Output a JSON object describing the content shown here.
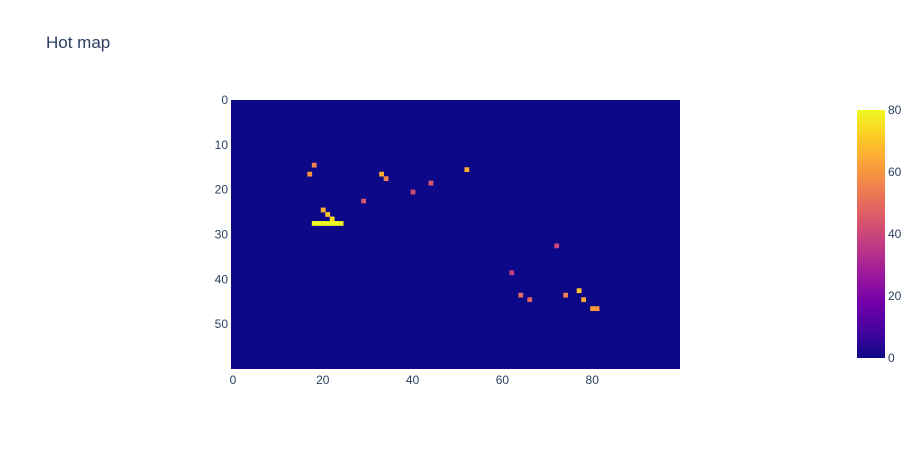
{
  "chart_data": {
    "type": "heatmap",
    "title": "Hot map",
    "xlabel": "",
    "ylabel": "",
    "xlim": [
      0,
      100
    ],
    "ylim": [
      60,
      0
    ],
    "x_ticks": [
      0,
      20,
      40,
      60,
      80
    ],
    "y_ticks": [
      0,
      10,
      20,
      30,
      40,
      50
    ],
    "colorbar": {
      "range": [
        0,
        80
      ],
      "ticks": [
        0,
        20,
        40,
        60,
        80
      ],
      "colorscale": [
        "#0d0887",
        "#46039f",
        "#7201a8",
        "#9c179e",
        "#bd3786",
        "#d8576b",
        "#ed7953",
        "#fb9f3a",
        "#fdca26",
        "#f0f921"
      ]
    },
    "background_value": 0,
    "hotspots": [
      {
        "x": 18,
        "y": 27,
        "value": 80
      },
      {
        "x": 19,
        "y": 27,
        "value": 80
      },
      {
        "x": 20,
        "y": 27,
        "value": 80
      },
      {
        "x": 21,
        "y": 27,
        "value": 80
      },
      {
        "x": 22,
        "y": 27,
        "value": 80
      },
      {
        "x": 23,
        "y": 27,
        "value": 80
      },
      {
        "x": 24,
        "y": 27,
        "value": 78
      },
      {
        "x": 22,
        "y": 26,
        "value": 76
      },
      {
        "x": 21,
        "y": 25,
        "value": 70
      },
      {
        "x": 20,
        "y": 24,
        "value": 66
      },
      {
        "x": 17,
        "y": 16,
        "value": 60
      },
      {
        "x": 18,
        "y": 14,
        "value": 55
      },
      {
        "x": 33,
        "y": 16,
        "value": 65
      },
      {
        "x": 34,
        "y": 17,
        "value": 55
      },
      {
        "x": 52,
        "y": 15,
        "value": 65
      },
      {
        "x": 77,
        "y": 42,
        "value": 70
      },
      {
        "x": 78,
        "y": 44,
        "value": 65
      },
      {
        "x": 80,
        "y": 46,
        "value": 62
      },
      {
        "x": 81,
        "y": 46,
        "value": 60
      },
      {
        "x": 74,
        "y": 43,
        "value": 55
      },
      {
        "x": 64,
        "y": 43,
        "value": 50
      },
      {
        "x": 66,
        "y": 44,
        "value": 48
      },
      {
        "x": 44,
        "y": 18,
        "value": 45
      },
      {
        "x": 40,
        "y": 20,
        "value": 42
      },
      {
        "x": 29,
        "y": 22,
        "value": 44
      },
      {
        "x": 72,
        "y": 32,
        "value": 40
      },
      {
        "x": 62,
        "y": 38,
        "value": 38
      }
    ]
  }
}
